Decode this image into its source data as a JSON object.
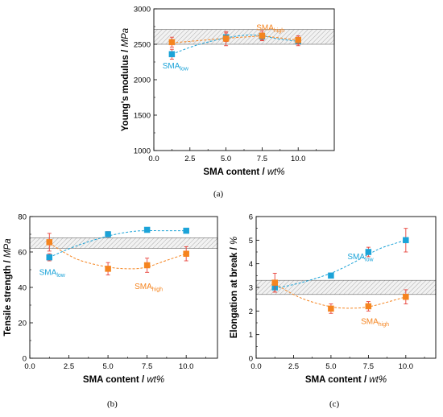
{
  "colors": {
    "low": "#1ba3d8",
    "high": "#f5841f",
    "error": "#e8423a",
    "band": "#9a9a9a"
  },
  "series_labels": {
    "base": "SMA",
    "low_sub": "low",
    "high_sub": "high"
  },
  "chart_data": [
    {
      "id": "a",
      "type": "scatter",
      "caption": "(a)",
      "xlabel_main": "SMA content / ",
      "xlabel_unit": "wt%",
      "ylabel_main": "Young's modulus / ",
      "ylabel_unit": "MPa",
      "xlim": [
        0,
        12.5
      ],
      "ylim": [
        1000,
        3000
      ],
      "xticks": [
        "0.0",
        "2.5",
        "5.0",
        "7.5",
        "10.0"
      ],
      "xtick_values": [
        0,
        2.5,
        5.0,
        7.5,
        10.0
      ],
      "yticks": [
        "1000",
        "1500",
        "2000",
        "2500",
        "3000"
      ],
      "ytick_values": [
        1000,
        1500,
        2000,
        2500,
        3000
      ],
      "band": [
        2500,
        2710
      ],
      "series": [
        {
          "key": "low",
          "x": [
            1.25,
            5,
            7.5,
            10
          ],
          "y": [
            2360,
            2600,
            2610,
            2540
          ],
          "err": [
            70,
            60,
            50,
            60
          ]
        },
        {
          "key": "high",
          "x": [
            1.25,
            5,
            7.5,
            10
          ],
          "y": [
            2530,
            2580,
            2620,
            2560
          ],
          "err": [
            70,
            100,
            70,
            60
          ]
        }
      ],
      "trend": {
        "low": {
          "x": [
            1.25,
            3,
            5,
            6.5,
            7.5,
            8.5,
            10
          ],
          "y": [
            2360,
            2490,
            2590,
            2630,
            2620,
            2580,
            2540
          ]
        },
        "high": {
          "x": [
            1.25,
            3,
            5,
            6.5,
            7.5,
            8.5,
            10
          ],
          "y": [
            2520,
            2550,
            2585,
            2605,
            2615,
            2595,
            2560
          ]
        }
      },
      "series_annot": {
        "low": {
          "x": 0.6,
          "y": 2160
        },
        "high": {
          "x": 7.1,
          "y": 2700
        }
      }
    },
    {
      "id": "b",
      "type": "scatter",
      "caption": "(b)",
      "xlabel_main": "SMA content / ",
      "xlabel_unit": "wt%",
      "ylabel_main": "Tensile strength / ",
      "ylabel_unit": "MPa",
      "xlim": [
        0,
        12
      ],
      "ylim": [
        0,
        80
      ],
      "xticks": [
        "0.0",
        "2.5",
        "5.0",
        "7.5",
        "10.0"
      ],
      "xtick_values": [
        0,
        2.5,
        5.0,
        7.5,
        10.0
      ],
      "yticks": [
        "0",
        "20",
        "40",
        "60",
        "80"
      ],
      "ytick_values": [
        0,
        20,
        40,
        60,
        80
      ],
      "band": [
        62,
        68
      ],
      "series": [
        {
          "key": "low",
          "x": [
            1.25,
            5,
            7.5,
            10
          ],
          "y": [
            57,
            70,
            72.5,
            72
          ],
          "err": [
            2,
            1.5,
            1,
            1
          ]
        },
        {
          "key": "high",
          "x": [
            1.25,
            5,
            7.5,
            10
          ],
          "y": [
            65.5,
            50.5,
            52.5,
            59
          ],
          "err": [
            5,
            3.5,
            4,
            4
          ]
        }
      ],
      "trend": {
        "low": {
          "x": [
            1.25,
            3,
            5,
            6.5,
            7.5,
            8.5,
            10
          ],
          "y": [
            57,
            63.5,
            69,
            71.5,
            72,
            72,
            72
          ]
        },
        "high": {
          "x": [
            1.25,
            3,
            5,
            6.5,
            7.5,
            8.5,
            10
          ],
          "y": [
            65,
            56,
            51.5,
            50.5,
            51.5,
            54.5,
            59
          ]
        }
      },
      "series_annot": {
        "low": {
          "x": 0.6,
          "y": 47
        },
        "high": {
          "x": 6.7,
          "y": 39
        }
      }
    },
    {
      "id": "c",
      "type": "scatter",
      "caption": "(c)",
      "xlabel_main": "SMA content / ",
      "xlabel_unit": "wt%",
      "ylabel_main": "Elongation at break / ",
      "ylabel_unit": "%",
      "xlim": [
        0,
        12
      ],
      "ylim": [
        0,
        6
      ],
      "xticks": [
        "0.0",
        "2.5",
        "5.0",
        "7.5",
        "10.0"
      ],
      "xtick_values": [
        0,
        2.5,
        5.0,
        7.5,
        10.0
      ],
      "yticks": [
        "0",
        "1",
        "2",
        "3",
        "4",
        "5",
        "6"
      ],
      "ytick_values": [
        0,
        1,
        2,
        3,
        4,
        5,
        6
      ],
      "band": [
        2.7,
        3.3
      ],
      "series": [
        {
          "key": "low",
          "x": [
            1.25,
            5,
            7.5,
            10
          ],
          "y": [
            3.0,
            3.5,
            4.5,
            5.0
          ],
          "err": [
            0.2,
            0.1,
            0.2,
            0.5
          ]
        },
        {
          "key": "high",
          "x": [
            1.25,
            5,
            7.5,
            10
          ],
          "y": [
            3.2,
            2.1,
            2.2,
            2.6
          ],
          "err": [
            0.4,
            0.2,
            0.2,
            0.3
          ]
        }
      ],
      "trend": {
        "low": {
          "x": [
            1.25,
            3,
            5,
            6.5,
            7.5,
            8.5,
            10
          ],
          "y": [
            2.95,
            3.2,
            3.6,
            4.05,
            4.4,
            4.7,
            5.0
          ]
        },
        "high": {
          "x": [
            1.25,
            3,
            5,
            6.5,
            7.5,
            8.5,
            10
          ],
          "y": [
            3.15,
            2.55,
            2.18,
            2.12,
            2.18,
            2.33,
            2.6
          ]
        }
      },
      "series_annot": {
        "low": {
          "x": 6.1,
          "y": 4.2
        },
        "high": {
          "x": 7.0,
          "y": 1.45
        }
      }
    }
  ]
}
